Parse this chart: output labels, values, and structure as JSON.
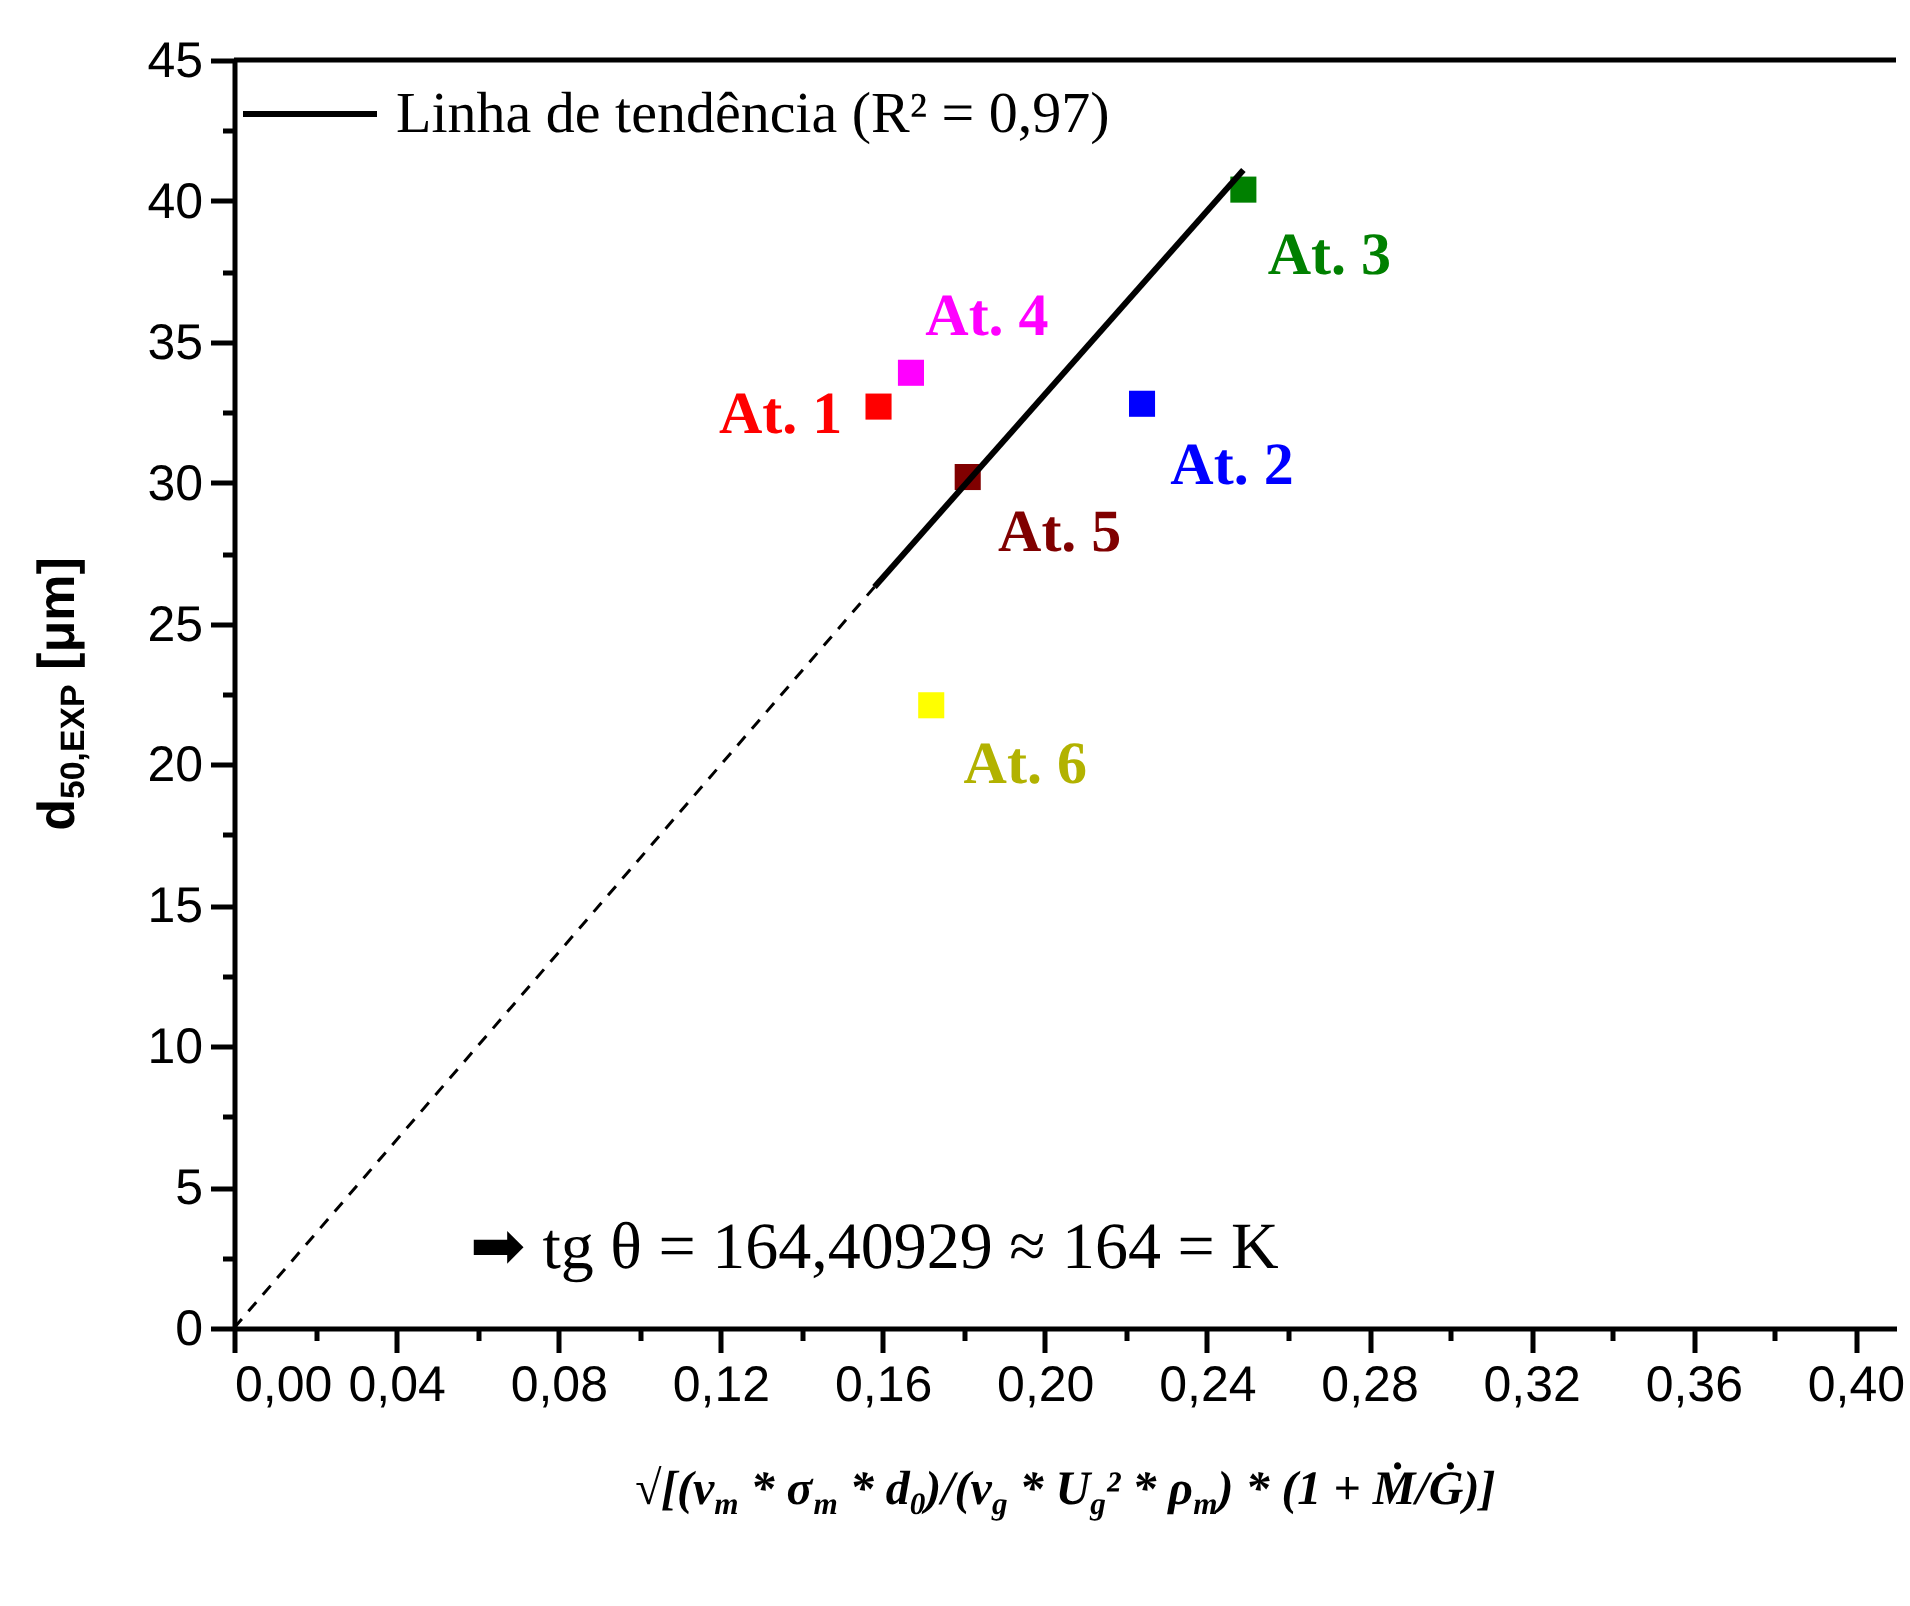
{
  "chart_data": {
    "type": "scatter",
    "xlabel": "√[(v$_{m}$ * σ$_{m}$ * d$_{0}$)/(v$_{g}$ * U$_{g}$² * ρ$_{m}$) * (1 + Ṁ/Ġ)]",
    "ylabel": "d$_{50,EXP}$ [μm]",
    "xlim": [
      0,
      0.41
    ],
    "xticks": [
      {
        "value": 0,
        "label": "0,00"
      },
      {
        "value": 0.02,
        "label": null
      },
      {
        "value": 0.04,
        "label": "0,04"
      },
      {
        "value": 0.06,
        "label": null
      },
      {
        "value": 0.08,
        "label": "0,08"
      },
      {
        "value": 0.1,
        "label": null
      },
      {
        "value": 0.12,
        "label": "0,12"
      },
      {
        "value": 0.14,
        "label": null
      },
      {
        "value": 0.16,
        "label": "0,16"
      },
      {
        "value": 0.18,
        "label": null
      },
      {
        "value": 0.2,
        "label": "0,20"
      },
      {
        "value": 0.22,
        "label": null
      },
      {
        "value": 0.24,
        "label": "0,24"
      },
      {
        "value": 0.26,
        "label": null
      },
      {
        "value": 0.28,
        "label": "0,28"
      },
      {
        "value": 0.3,
        "label": null
      },
      {
        "value": 0.32,
        "label": "0,32"
      },
      {
        "value": 0.34,
        "label": null
      },
      {
        "value": 0.36,
        "label": "0,36"
      },
      {
        "value": 0.38,
        "label": null
      },
      {
        "value": 0.4,
        "label": "0,40"
      }
    ],
    "ylim": [
      0,
      45
    ],
    "yticks": [
      0,
      {
        "value": 2.5,
        "label": null
      },
      5,
      {
        "value": 7.5,
        "label": null
      },
      10,
      {
        "value": 12.5,
        "label": null
      },
      15,
      {
        "value": 17.5,
        "label": null
      },
      20,
      {
        "value": 22.5,
        "label": null
      },
      25,
      {
        "value": 27.5,
        "label": null
      },
      30,
      {
        "value": 32.5,
        "label": null
      },
      35,
      {
        "value": 37.5,
        "label": null
      },
      40,
      {
        "value": 42.5,
        "label": null
      },
      45
    ],
    "marker": "square",
    "legend": "top left",
    "annotations": [
      "➡ tg θ = 164,40929 ≈ 164 = K"
    ],
    "series": [
      {
        "name": "At. 1",
        "color": "#ff0000",
        "x": [
          0.159
        ],
        "values": [
          32.7
        ]
      },
      {
        "name": "At. 2",
        "color": "#0000ff",
        "x": [
          0.224
        ],
        "values": [
          32.8
        ]
      },
      {
        "name": "At. 3",
        "color": "#008000",
        "x": [
          0.249
        ],
        "values": [
          40.4
        ]
      },
      {
        "name": "At. 4",
        "color": "#ff00ff",
        "x": [
          0.167
        ],
        "values": [
          33.9
        ]
      },
      {
        "name": "At. 5",
        "color": "#800000",
        "x": [
          0.181
        ],
        "values": [
          30.2
        ]
      },
      {
        "name": "At. 6",
        "color": "#ffff00",
        "x": [
          0.172
        ],
        "values": [
          22.1
        ]
      },
      {
        "type": "line",
        "name": "Linha de tendência (R² = 0,97)",
        "color": "#000000",
        "line_style": "solid",
        "marker": "none",
        "x": [
          0.158,
          0.249
        ],
        "values": [
          26.3,
          41.1
        ]
      },
      {
        "type": "line",
        "color": "#000000",
        "line_style": "dashed",
        "marker": "none",
        "x": [
          0,
          0.158
        ],
        "values": [
          0,
          26.3
        ]
      }
    ]
  }
}
